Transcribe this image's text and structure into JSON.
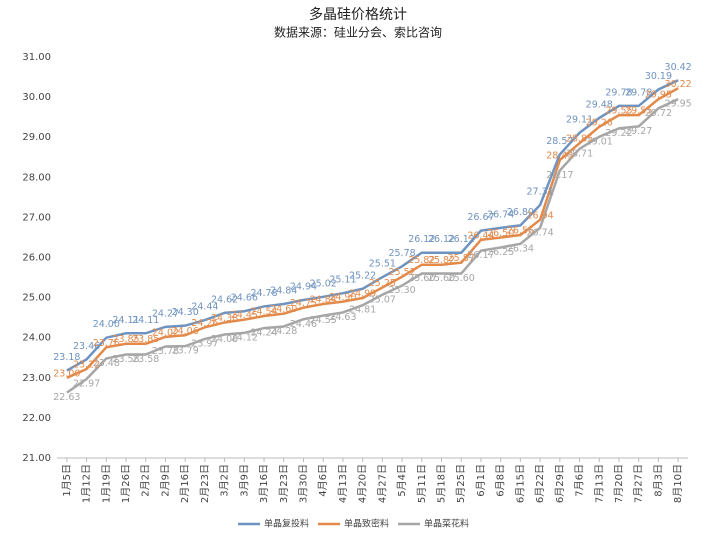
{
  "chart_data": {
    "type": "line",
    "title": "多晶硅价格统计",
    "subtitle": "数据来源：硅业分会、索比咨询",
    "categories": [
      "1月5日",
      "1月12日",
      "1月19日",
      "1月26日",
      "2月2日",
      "2月9日",
      "2月16日",
      "2月23日",
      "3月2日",
      "3月9日",
      "3月16日",
      "3月23日",
      "3月30日",
      "4月6日",
      "4月13日",
      "4月20日",
      "4月27日",
      "5月4日",
      "5月11日",
      "5月18日",
      "5月25日",
      "6月1日",
      "6月8日",
      "6月15日",
      "6月22日",
      "6月29日",
      "7月6日",
      "7月13日",
      "7月20日",
      "7月27日",
      "8月3日",
      "8月10日"
    ],
    "series": [
      {
        "name": "单晶复投料",
        "color": "#6f93c0",
        "values": [
          23.18,
          23.46,
          24.0,
          24.11,
          24.11,
          24.27,
          24.3,
          24.44,
          24.62,
          24.66,
          24.78,
          24.84,
          24.94,
          25.02,
          25.11,
          25.22,
          25.51,
          25.78,
          26.12,
          26.12,
          26.12,
          26.67,
          26.74,
          26.8,
          27.31,
          28.57,
          29.11,
          29.48,
          29.78,
          29.78,
          30.19,
          30.42
        ],
        "value_labels": [
          "23.18",
          "23.46",
          "24.00",
          "24.11",
          "24.11",
          "24.27",
          "24.30",
          "24.44",
          "24.62",
          "24.66",
          "24.78",
          "24.84",
          "24.94",
          "25.02",
          "25.11",
          "25.22",
          "25.51",
          "25.78",
          "26.12",
          "26.12",
          "26.12",
          "26.67",
          "26.74",
          "26.80",
          "27.31",
          "28.57",
          "29.11",
          "29.48",
          "29.78",
          "29.78",
          "30.19",
          "30.42"
        ]
      },
      {
        "name": "单晶致密料",
        "color": "#e38a4b",
        "values": [
          23.0,
          23.22,
          23.76,
          23.85,
          23.85,
          24.02,
          24.06,
          24.26,
          24.38,
          24.45,
          24.54,
          24.6,
          24.75,
          24.84,
          24.9,
          24.99,
          25.25,
          25.52,
          25.82,
          25.82,
          25.87,
          26.44,
          26.5,
          26.56,
          26.94,
          28.43,
          28.85,
          29.26,
          29.55,
          29.55,
          29.95,
          30.22
        ],
        "value_labels": [
          "23.00",
          "23.22",
          "23.76",
          "23.85",
          "23.85",
          "24.02",
          "24.06",
          "24.26",
          "24.38",
          "24.45",
          "24.54",
          "24.60",
          "24.75",
          "24.84",
          "24.90",
          "24.99",
          "25.25",
          "25.52",
          "25.82",
          "25.82",
          "25.87",
          "26.44",
          "26.50",
          "26.56",
          "26.94",
          "28.43",
          "28.85",
          "29.26",
          "29.55",
          "29.55",
          "29.95",
          "30.22"
        ]
      },
      {
        "name": "单晶菜花料",
        "color": "#a6a6a6",
        "values": [
          22.63,
          22.97,
          23.48,
          23.58,
          23.58,
          23.78,
          23.79,
          23.97,
          24.08,
          24.12,
          24.24,
          24.28,
          24.46,
          24.55,
          24.63,
          24.81,
          25.07,
          25.3,
          25.6,
          25.6,
          25.6,
          26.17,
          26.25,
          26.34,
          26.74,
          28.17,
          28.71,
          29.01,
          29.22,
          29.27,
          29.72,
          29.95
        ],
        "value_labels": [
          "22.63",
          "22.97",
          "23.48",
          "23.58",
          "23.58",
          "23.78",
          "23.79",
          "23.97",
          "24.08",
          "24.12",
          "24.24",
          "24.28",
          "24.46",
          "24.55",
          "24.63",
          "24.81",
          "25.07",
          "25.30",
          "25.60",
          "25.60",
          "25.60",
          "26.17",
          "26.25",
          "26.34",
          "26.74",
          "28.17",
          "28.71",
          "29.01",
          "29.22",
          "29.27",
          "29.72",
          "29.95"
        ]
      }
    ],
    "ylim": [
      21,
      31
    ],
    "yticks": [
      {
        "value": 21,
        "label": "21.00"
      },
      {
        "value": 22,
        "label": "22.00"
      },
      {
        "value": 23,
        "label": "23.00"
      },
      {
        "value": 24,
        "label": "24.00"
      },
      {
        "value": 25,
        "label": "25.00"
      },
      {
        "value": 26,
        "label": "26.00"
      },
      {
        "value": 27,
        "label": "27.00"
      },
      {
        "value": 28,
        "label": "28.00"
      },
      {
        "value": 29,
        "label": "29.00"
      },
      {
        "value": 30,
        "label": "30.00"
      },
      {
        "value": 31,
        "label": "31.00"
      }
    ],
    "grid": false,
    "legend": "bottom"
  }
}
